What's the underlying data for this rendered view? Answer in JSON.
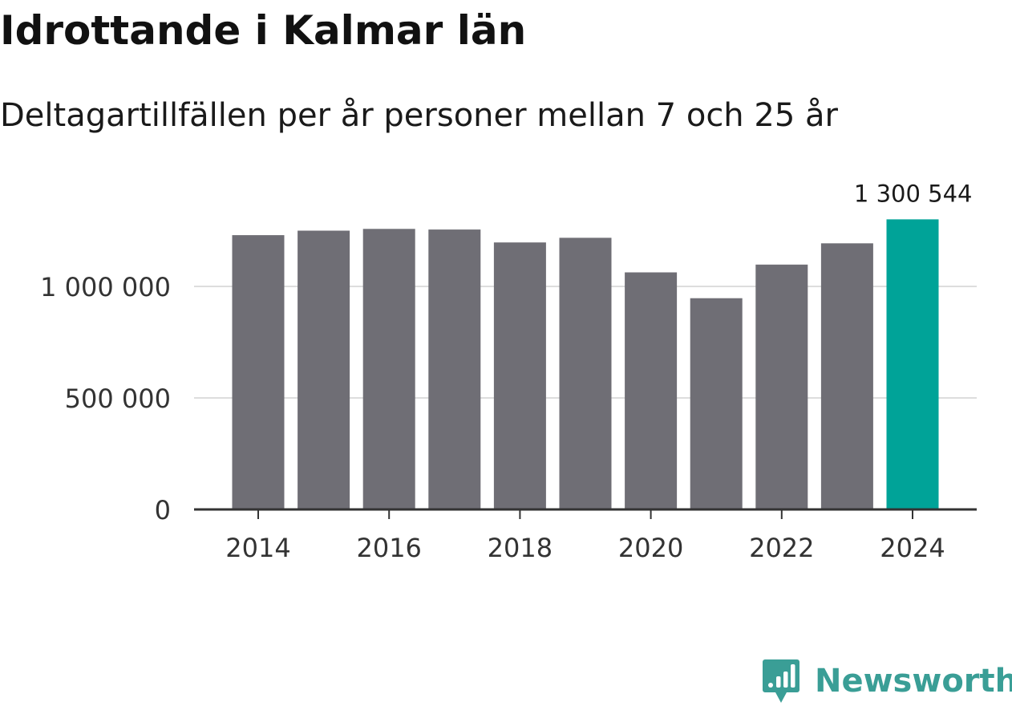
{
  "chart_data": {
    "type": "bar",
    "title": "Idrottande i Kalmar län",
    "subtitle": "Deltagartillfällen per år personer mellan 7 och 25 år",
    "categories": [
      "2014",
      "2015",
      "2016",
      "2017",
      "2018",
      "2019",
      "2020",
      "2021",
      "2022",
      "2023",
      "2024"
    ],
    "values": [
      1230000,
      1250000,
      1258000,
      1255000,
      1197000,
      1218000,
      1063000,
      947000,
      1098000,
      1193000,
      1300544
    ],
    "xlabel": "",
    "ylabel": "",
    "ylim": [
      0,
      1350000
    ],
    "yticks": [
      0,
      500000,
      1000000
    ],
    "ytick_labels": [
      "0",
      "500 000",
      "1 000 000"
    ],
    "xticks": [
      "2014",
      "2016",
      "2018",
      "2020",
      "2022",
      "2024"
    ],
    "highlight_index": 10,
    "highlight_label": "1 300 544",
    "grid": true,
    "legend": "none",
    "colors": {
      "bar": "#6f6e75",
      "highlight": "#00a398",
      "grid": "#dddddd",
      "axis": "#333333"
    }
  },
  "brand": {
    "name": "Newsworthy",
    "icon": "bar-chart-speech-bubble-icon",
    "color": "#3a9e96"
  }
}
